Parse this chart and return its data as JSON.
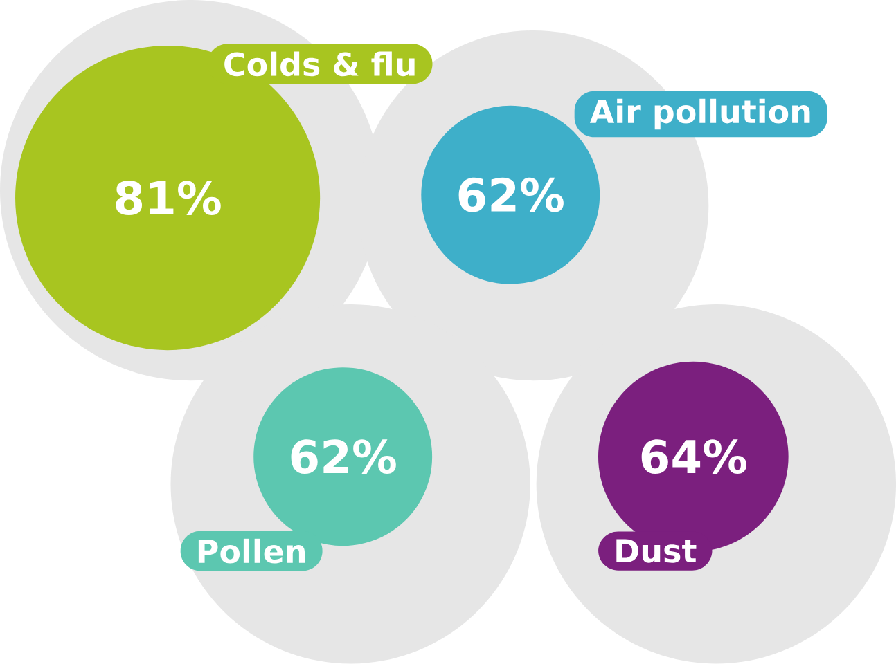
{
  "chart_data": {
    "type": "other",
    "categories": [
      "Colds & flu",
      "Air pollution",
      "Pollen",
      "Dust"
    ],
    "values": [
      81,
      62,
      62,
      64
    ],
    "value_labels": [
      "81%",
      "62%",
      "62%",
      "64%"
    ],
    "colors": [
      "#a8c520",
      "#3eafc9",
      "#5cc7b0",
      "#7b1f7e"
    ]
  }
}
